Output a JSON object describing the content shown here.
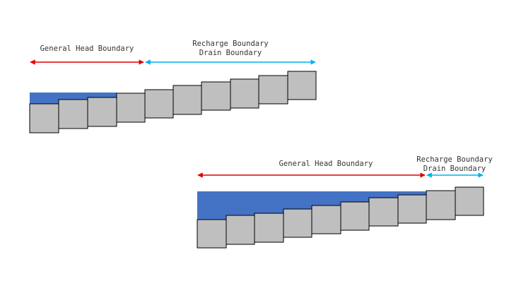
{
  "colors": {
    "background": "#ffffff",
    "water": "#4472c4",
    "cell_fill": "#bfbfbf",
    "cell_stroke": "#000000",
    "general_head_arrow": "#e00000",
    "recharge_drain_arrow": "#00b0f0"
  },
  "diagrams": [
    {
      "id": "top",
      "general_head_label": "General Head Boundary",
      "recharge_label_line1": "Recharge Boundary",
      "recharge_label_line2": "Drain Boundary",
      "cell_count": 10,
      "general_head_cells": 4,
      "recharge_drain_cells": 6
    },
    {
      "id": "bottom",
      "general_head_label": "General Head Boundary",
      "recharge_label_line1": "Recharge Boundary",
      "recharge_label_line2": "Drain Boundary",
      "cell_count": 10,
      "general_head_cells": 8,
      "recharge_drain_cells": 2
    }
  ]
}
